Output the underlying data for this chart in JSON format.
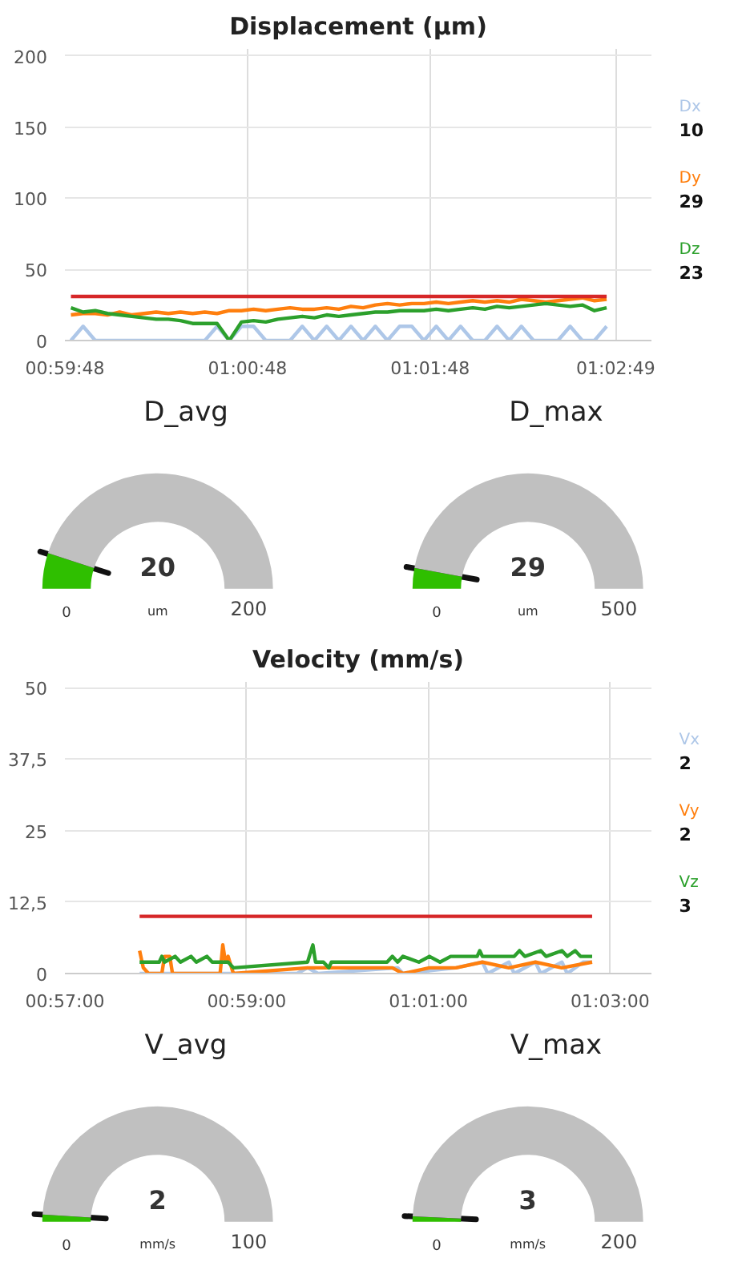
{
  "chart_data": [
    {
      "type": "line",
      "title": "Displacement (µm)",
      "xlim": [
        0.99667,
        1.0502
      ],
      "ylim": [
        0,
        205
      ],
      "yticks": [
        0,
        50,
        100,
        150,
        200
      ],
      "xticks": [
        {
          "value": 0.99667,
          "label": "00:59:48"
        },
        {
          "value": 1.01333,
          "label": "01:00:48"
        },
        {
          "value": 1.03,
          "label": "01:01:48"
        },
        {
          "value": 1.04694,
          "label": "01:02:49"
        }
      ],
      "grid": true,
      "legend": "right",
      "annotations": [
        "10",
        "29",
        "23"
      ],
      "series": [
        {
          "name": "Dx",
          "color": "#aec7e8",
          "x": [
            0.99722,
            0.99833,
            0.99944,
            1.00056,
            1.00167,
            1.00278,
            1.00389,
            1.005,
            1.00611,
            1.00722,
            1.00833,
            1.00944,
            1.01056,
            1.01167,
            1.01278,
            1.01389,
            1.015,
            1.01611,
            1.01722,
            1.01833,
            1.01944,
            1.02056,
            1.02167,
            1.02278,
            1.02389,
            1.025,
            1.02611,
            1.02722,
            1.02833,
            1.02944,
            1.03056,
            1.03167,
            1.03278,
            1.03389,
            1.035,
            1.03611,
            1.03722,
            1.03833,
            1.03944,
            1.04056,
            1.04167,
            1.04278,
            1.04389,
            1.045,
            1.04611
          ],
          "values": [
            0,
            10,
            0,
            0,
            0,
            0,
            0,
            0,
            0,
            0,
            0,
            0,
            10,
            0,
            10,
            10,
            0,
            0,
            0,
            10,
            0,
            10,
            0,
            10,
            0,
            10,
            0,
            10,
            10,
            0,
            10,
            0,
            10,
            0,
            0,
            10,
            0,
            10,
            0,
            0,
            0,
            10,
            0,
            0,
            10
          ]
        },
        {
          "name": "Dy",
          "color": "#ff7f0e",
          "x": [
            0.99722,
            0.99833,
            0.99944,
            1.00056,
            1.00167,
            1.00278,
            1.00389,
            1.005,
            1.00611,
            1.00722,
            1.00833,
            1.00944,
            1.01056,
            1.01167,
            1.01278,
            1.01389,
            1.015,
            1.01611,
            1.01722,
            1.01833,
            1.01944,
            1.02056,
            1.02167,
            1.02278,
            1.02389,
            1.025,
            1.02611,
            1.02722,
            1.02833,
            1.02944,
            1.03056,
            1.03167,
            1.03278,
            1.03389,
            1.035,
            1.03611,
            1.03722,
            1.03833,
            1.03944,
            1.04056,
            1.04167,
            1.04278,
            1.04389,
            1.045,
            1.04611
          ],
          "values": [
            18,
            19,
            19,
            18,
            20,
            18,
            19,
            20,
            19,
            20,
            19,
            20,
            19,
            21,
            21,
            22,
            21,
            22,
            23,
            22,
            22,
            23,
            22,
            24,
            23,
            25,
            26,
            25,
            26,
            26,
            27,
            26,
            27,
            28,
            27,
            28,
            27,
            29,
            28,
            27,
            28,
            29,
            30,
            28,
            29
          ]
        },
        {
          "name": "Dz",
          "color": "#2ca02c",
          "x": [
            0.99722,
            0.99833,
            0.99944,
            1.00056,
            1.00167,
            1.00278,
            1.00389,
            1.005,
            1.00611,
            1.00722,
            1.00833,
            1.00944,
            1.01056,
            1.01167,
            1.01278,
            1.01389,
            1.015,
            1.01611,
            1.01722,
            1.01833,
            1.01944,
            1.02056,
            1.02167,
            1.02278,
            1.02389,
            1.025,
            1.02611,
            1.02722,
            1.02833,
            1.02944,
            1.03056,
            1.03167,
            1.03278,
            1.03389,
            1.035,
            1.03611,
            1.03722,
            1.03833,
            1.03944,
            1.04056,
            1.04167,
            1.04278,
            1.04389,
            1.045,
            1.04611
          ],
          "values": [
            23,
            20,
            21,
            19,
            18,
            17,
            16,
            15,
            15,
            14,
            12,
            12,
            12,
            0,
            13,
            14,
            13,
            15,
            16,
            17,
            16,
            18,
            17,
            18,
            19,
            20,
            20,
            21,
            21,
            21,
            22,
            21,
            22,
            23,
            22,
            24,
            23,
            24,
            25,
            26,
            25,
            24,
            25,
            21,
            23
          ]
        },
        {
          "color": "#d62728",
          "x": [
            0.99722,
            1.04611
          ],
          "values": [
            31,
            31
          ]
        }
      ]
    },
    {
      "type": "donut",
      "title": "D_avg",
      "categories": [
        null,
        null
      ],
      "values": [
        10,
        90
      ],
      "colors": [
        "#2fbf00",
        "#c0c0c0"
      ],
      "annotations": [
        "20",
        "um",
        "0",
        "200"
      ]
    },
    {
      "type": "donut",
      "title": "D_max",
      "categories": [
        null,
        null
      ],
      "values": [
        5.8,
        94.2
      ],
      "colors": [
        "#2fbf00",
        "#c0c0c0"
      ],
      "annotations": [
        "29",
        "um",
        "0",
        "500"
      ]
    },
    {
      "type": "line",
      "title": "Velocity (mm/s)",
      "xlim": [
        0.95,
        1.05758
      ],
      "ylim": [
        0,
        51
      ],
      "yticks": [
        0,
        {
          "value": 12.5,
          "label": "12,5"
        },
        25,
        {
          "value": 37.5,
          "label": "37,5"
        },
        50
      ],
      "xticks": [
        {
          "value": 0.95,
          "label": "00:57:00"
        },
        {
          "value": 0.98333,
          "label": "00:59:00"
        },
        {
          "value": 1.01667,
          "label": "01:01:00"
        },
        {
          "value": 1.05,
          "label": "01:03:00"
        }
      ],
      "grid": true,
      "legend": "right",
      "annotations": [
        "2",
        "2",
        "3"
      ],
      "series": [
        {
          "name": "Vx",
          "color": "#aec7e8",
          "x": [
            0.9637,
            0.99257,
            0.99451,
            0.99645,
            1.01103,
            1.012,
            1.02172,
            1.02658,
            1.02755,
            1.03144,
            1.03241,
            1.0363,
            1.03727,
            1.04116,
            1.04213,
            1.04504,
            1.0467
          ],
          "values": [
            0,
            0,
            1,
            0,
            1,
            0,
            1,
            2,
            0,
            2,
            0,
            2,
            0,
            2,
            0,
            2,
            2
          ]
        },
        {
          "name": "Vy",
          "color": "#ff7f0e",
          "x": [
            0.9637,
            0.96438,
            0.96535,
            0.96778,
            0.96827,
            0.96924,
            0.96973,
            0.97847,
            0.97896,
            0.97945,
            0.97993,
            0.9809,
            0.99451,
            0.99645,
            1.01006,
            1.012,
            1.01686,
            1.02172,
            1.02658,
            1.03144,
            1.0363,
            1.04116,
            1.0467
          ],
          "values": [
            4,
            1,
            0,
            0,
            3,
            3,
            0,
            0,
            5,
            2,
            3,
            0,
            1,
            1,
            1,
            0,
            1,
            1,
            2,
            1,
            2,
            1,
            2
          ]
        },
        {
          "name": "Vz",
          "color": "#2ca02c",
          "x": [
            0.9637,
            0.9673,
            0.96778,
            0.96827,
            0.97021,
            0.97119,
            0.97313,
            0.9741,
            0.97604,
            0.97702,
            0.97896,
            0.97993,
            0.9809,
            0.99451,
            0.99548,
            0.99597,
            0.99742,
            0.9984,
            0.99888,
            1.0052,
            1.00909,
            1.01006,
            1.01103,
            1.012,
            1.01492,
            1.01686,
            1.0188,
            1.02075,
            1.02561,
            1.02609,
            1.02658,
            1.03241,
            1.03338,
            1.03435,
            1.03727,
            1.03824,
            1.04116,
            1.04213,
            1.04359,
            1.04456,
            1.0467
          ],
          "values": [
            2,
            2,
            3,
            2,
            3,
            2,
            3,
            2,
            3,
            2,
            2,
            2,
            1,
            2,
            5,
            2,
            2,
            1,
            2,
            2,
            2,
            3,
            2,
            3,
            2,
            3,
            2,
            3,
            3,
            4,
            3,
            3,
            4,
            3,
            4,
            3,
            4,
            3,
            4,
            3,
            3
          ]
        },
        {
          "color": "#d62728",
          "x": [
            0.9637,
            1.0467
          ],
          "values": [
            10,
            10
          ]
        }
      ]
    },
    {
      "type": "donut",
      "title": "V_avg",
      "categories": [
        null,
        null
      ],
      "values": [
        2,
        98
      ],
      "colors": [
        "#2fbf00",
        "#c0c0c0"
      ],
      "annotations": [
        "2",
        "mm/s",
        "0",
        "100"
      ]
    },
    {
      "type": "donut",
      "title": "V_max",
      "categories": [
        null,
        null
      ],
      "values": [
        1.5,
        98.5
      ],
      "colors": [
        "#2fbf00",
        "#c0c0c0"
      ],
      "annotations": [
        "3",
        "mm/s",
        "0",
        "200"
      ]
    }
  ]
}
